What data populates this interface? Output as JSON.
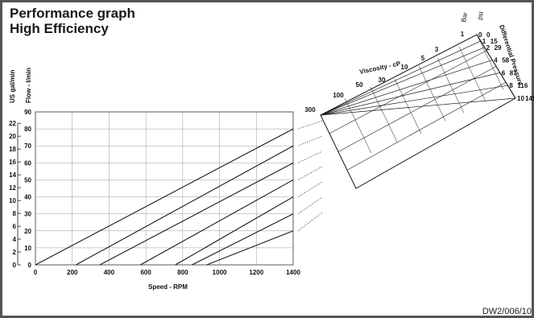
{
  "title": "Performance graph",
  "subtitle": "High Efficiency",
  "doc_code": "DW2/006/10",
  "colors": {
    "line": "#1a1a1a",
    "grid": "#999999",
    "border": "#555555"
  },
  "chart_data": {
    "type": "line",
    "title": "Performance graph High Efficiency",
    "xlabel": "Speed - RPM",
    "ylabel_flow": "Flow - l/min",
    "ylabel_us": "US gal/min",
    "x_ticks": [
      0,
      200,
      400,
      600,
      800,
      1000,
      1200,
      1400
    ],
    "xlim": [
      0,
      1400
    ],
    "ylim": [
      0,
      90
    ],
    "y_ticks_lmin": [
      0,
      10,
      20,
      30,
      40,
      50,
      60,
      70,
      80,
      90
    ],
    "y_ticks_usgal": [
      0,
      2,
      4,
      6,
      8,
      10,
      12,
      14,
      16,
      18,
      20,
      22
    ],
    "grid": true,
    "series": [
      {
        "x": [
          0,
          1400
        ],
        "y": [
          0,
          80
        ]
      },
      {
        "x": [
          220,
          1400
        ],
        "y": [
          0,
          70
        ]
      },
      {
        "x": [
          350,
          1400
        ],
        "y": [
          0,
          60
        ]
      },
      {
        "x": [
          570,
          1400
        ],
        "y": [
          0,
          50
        ]
      },
      {
        "x": [
          760,
          1400
        ],
        "y": [
          0,
          40
        ]
      },
      {
        "x": [
          850,
          1400
        ],
        "y": [
          0,
          30
        ]
      },
      {
        "x": [
          930,
          1400
        ],
        "y": [
          0,
          20
        ]
      }
    ],
    "nomogram": {
      "viscosity_label": "Viscosity - cP",
      "viscosity_values": [
        "300",
        "100",
        "50",
        "30",
        "10",
        "5",
        "3",
        "1"
      ],
      "pressure_label": "Differential Pressure",
      "bar_label": "Bar",
      "psi_label": "psi",
      "bar_values": [
        "0",
        "1",
        "2",
        "4",
        "6",
        "8",
        "10"
      ],
      "psi_values": [
        "0",
        "15",
        "29",
        "58",
        "87",
        "116",
        "145"
      ]
    }
  }
}
